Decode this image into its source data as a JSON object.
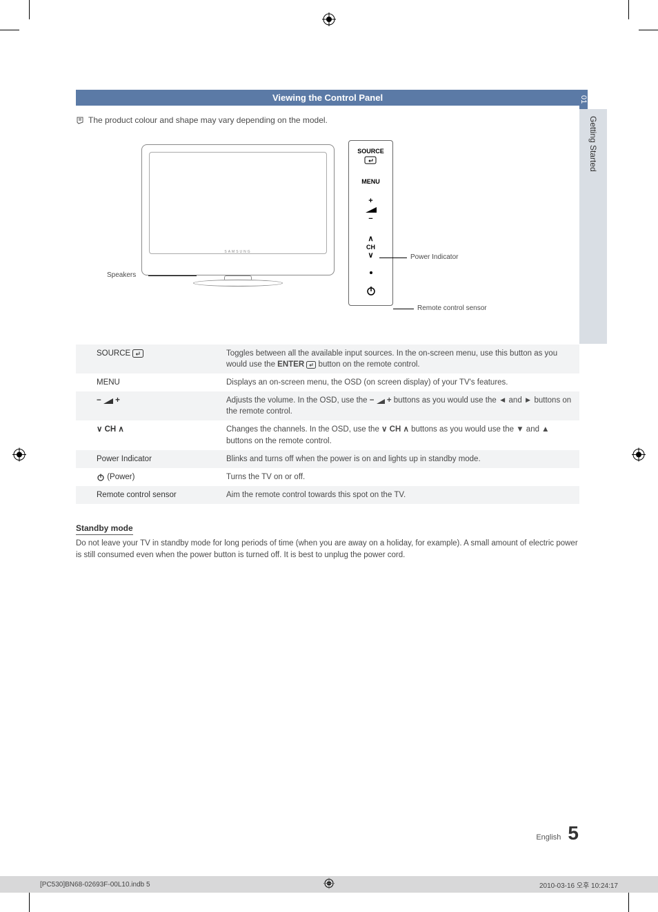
{
  "page": {
    "section_title": "Viewing the Control Panel",
    "note_text": "The product colour and shape may vary depending on the model.",
    "side_tab_number": "01",
    "side_tab_label": "Getting Started",
    "standby_heading": "Standby mode",
    "standby_body": "Do not leave your TV in standby mode for long periods of time (when you are away on a holiday, for example). A small amount of electric power is still consumed even when the power button is turned off. It is best to unplug the power cord.",
    "footer_language": "English",
    "page_number": "5",
    "print_left": "[PC530]BN68-02693F-00L10.indb   5",
    "print_right": "2010-03-16   오후 10:24:17"
  },
  "diagram": {
    "tv_logo": "SAMSUNG",
    "panel_labels": {
      "source": "SOURCE",
      "menu": "MENU",
      "ch": "CH"
    },
    "callouts": {
      "speakers": "Speakers",
      "power_indicator": "Power Indicator",
      "remote_sensor": "Remote control sensor"
    }
  },
  "table": {
    "rows": [
      {
        "label_text": "SOURCE",
        "label_has_enter_icon": true,
        "desc_html": "Toggles between all the available input sources. In the on-screen menu, use this button as you would use the <b>ENTER</b> <svg class='inline-svg' width='14' height='11' viewBox='0 0 14 11'><rect x='0.5' y='0.5' width='13' height='10' rx='2' fill='none' stroke='#444'/><path d='M9 3 L9 6 L5 6 M6.5 4.5 L5 6 L6.5 7.5' fill='none' stroke='#444' stroke-width='1'/></svg> button on the remote control."
      },
      {
        "label_text": "MENU",
        "desc_html": "Displays an on-screen menu, the OSD (on screen display) of your TV's features."
      },
      {
        "label_text": "",
        "label_is_volume": true,
        "desc_html": "Adjusts the volume. In the OSD, use the <b>−</b> <svg class='inline-svg' width='12' height='10' viewBox='0 0 12 10'><polygon points='0,10 12,10 12,3' fill='#444'/></svg> <b>+</b> buttons as you would use the ◄ and ► buttons on the remote control."
      },
      {
        "label_text": "CH",
        "label_is_channel": true,
        "desc_html": "Changes the channels. In the OSD, use the <b>∨ CH ∧</b> buttons as you would use the ▼ and ▲ buttons on the remote control."
      },
      {
        "label_text": "Power Indicator",
        "desc_html": "Blinks and turns off when the power is on and lights up in standby mode."
      },
      {
        "label_text": "(Power)",
        "label_has_power_icon": true,
        "desc_html": "Turns the TV on or off."
      },
      {
        "label_text": "Remote control sensor",
        "desc_html": "Aim the remote control towards this spot on the TV."
      }
    ]
  },
  "colors": {
    "title_bar_bg": "#5b7aa6",
    "title_bar_fg": "#ffffff",
    "side_tab_body_bg": "#d9dee4",
    "table_alt_bg": "#f2f3f4",
    "text": "#4a4a4a",
    "print_bar_bg": "#d8d8d9"
  }
}
